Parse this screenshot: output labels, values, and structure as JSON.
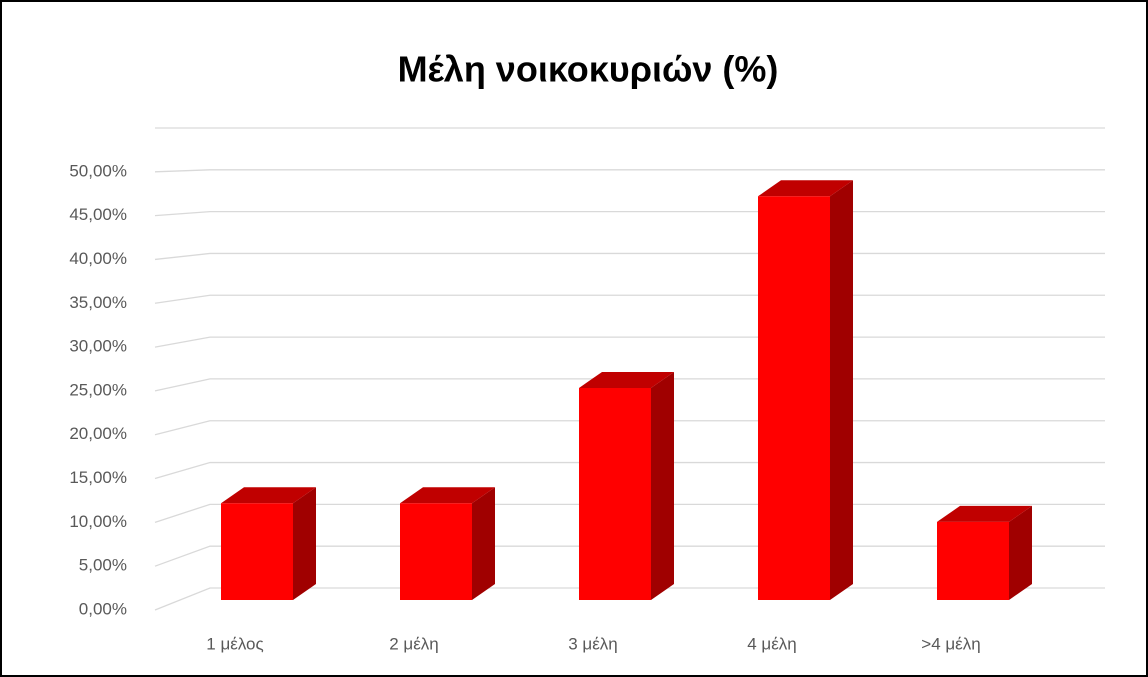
{
  "chart_data": {
    "type": "bar3d",
    "title": "Μέλη νοικοκυριών (%)",
    "categories": [
      "1 μέλος",
      "2 μέλη",
      "3 μέλη",
      "4 μέλη",
      ">4 μέλη"
    ],
    "values": [
      10.9,
      10.9,
      23.9,
      45.5,
      8.8
    ],
    "color": "#ff0000",
    "ylim": [
      0,
      55
    ],
    "yticks": [
      {
        "value": 0,
        "label": "0,00%"
      },
      {
        "value": 5,
        "label": "5,00%"
      },
      {
        "value": 10,
        "label": "10,00%"
      },
      {
        "value": 15,
        "label": "15,00%"
      },
      {
        "value": 20,
        "label": "20,00%"
      },
      {
        "value": 25,
        "label": "25,00%"
      },
      {
        "value": 30,
        "label": "30,00%"
      },
      {
        "value": 35,
        "label": "35,00%"
      },
      {
        "value": 40,
        "label": "40,00%"
      },
      {
        "value": 45,
        "label": "45,00%"
      },
      {
        "value": 50,
        "label": "50,00%"
      }
    ],
    "grid": true
  }
}
